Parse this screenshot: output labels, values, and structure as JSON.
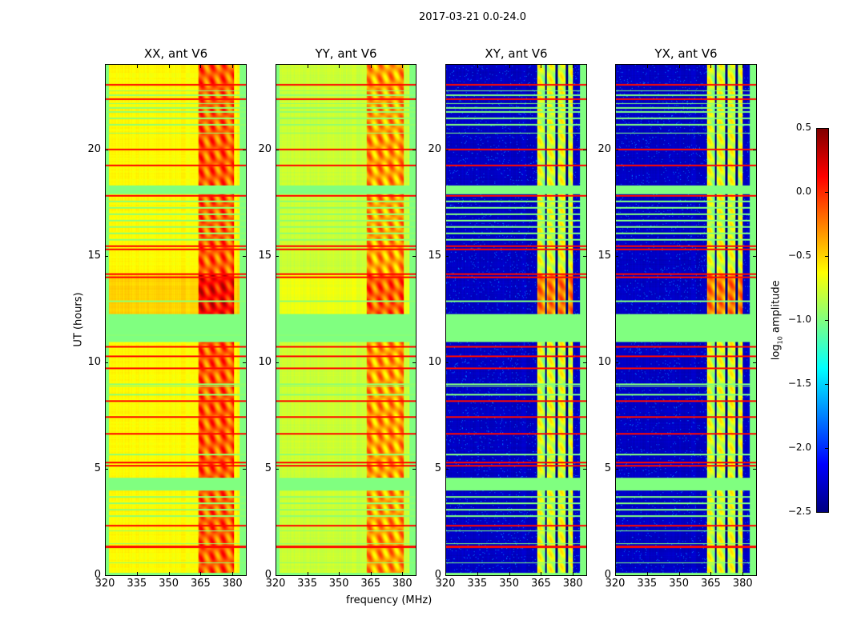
{
  "chart_data": {
    "type": "heatmap",
    "title": "2017-03-21 0.0-24.0",
    "xlabel": "frequency (MHz)",
    "ylabel": "UT (hours)",
    "xlim": [
      320,
      386.7
    ],
    "ylim": [
      0,
      24
    ],
    "xticks": [
      "320",
      "335",
      "350",
      "365",
      "380"
    ],
    "yticks": [
      "0",
      "5",
      "10",
      "15",
      "20"
    ],
    "panels": [
      {
        "title": "XX, ant V6",
        "base": -0.62,
        "band_level": -0.15,
        "band_range": [
          364,
          381
        ],
        "active_hours_boost": [
          12.3,
          14.2,
          0.25
        ]
      },
      {
        "title": "YY, ant V6",
        "base": -0.78,
        "band_level": -0.35,
        "band_range": [
          363,
          381
        ],
        "active_hours_boost": [
          12.3,
          14.2,
          0.2
        ]
      },
      {
        "title": "XY, ant V6",
        "base": -2.3,
        "band_level": -0.8,
        "band_range": [
          363,
          380
        ],
        "active_hours_boost": [
          12.3,
          14.2,
          0.5
        ]
      },
      {
        "title": "YX, ant V6",
        "base": -2.3,
        "band_level": -0.8,
        "band_range": [
          363,
          380
        ],
        "active_hours_boost": [
          12.3,
          14.2,
          0.5
        ]
      }
    ],
    "flagged_high_ut": [
      23.08,
      22.4,
      20.05,
      19.29,
      17.86,
      15.5,
      15.35,
      14.18,
      14.03,
      10.77,
      10.3,
      9.76,
      8.22,
      7.47,
      6.68,
      5.3,
      5.15,
      2.36,
      1.35
    ],
    "flagged_mid_ut_bands": [
      [
        4.0,
        4.6
      ],
      [
        11.0,
        12.3
      ],
      [
        17.95,
        18.35
      ],
      [
        0.0,
        0.12
      ]
    ],
    "flagged_mid_ut_lines": [
      22.8,
      22.6,
      22.2,
      22.0,
      21.8,
      21.5,
      21.2,
      20.8,
      17.6,
      17.3,
      17.0,
      16.7,
      16.4,
      16.1,
      15.8,
      12.9,
      11.3,
      9.0,
      8.9,
      8.5,
      5.7,
      3.7,
      3.4,
      3.1,
      2.8,
      2.1,
      1.5,
      0.6
    ],
    "colorbar": {
      "label": "log10 amplitude",
      "label_main": "log",
      "label_sub": "10",
      "label_rest": " amplitude",
      "range": [
        -2.5,
        0.5
      ],
      "ticks": [
        "0.5",
        "0.0",
        "−0.5",
        "−1.0",
        "−1.5",
        "−2.0",
        "−2.5"
      ],
      "colormap": "jet"
    }
  }
}
